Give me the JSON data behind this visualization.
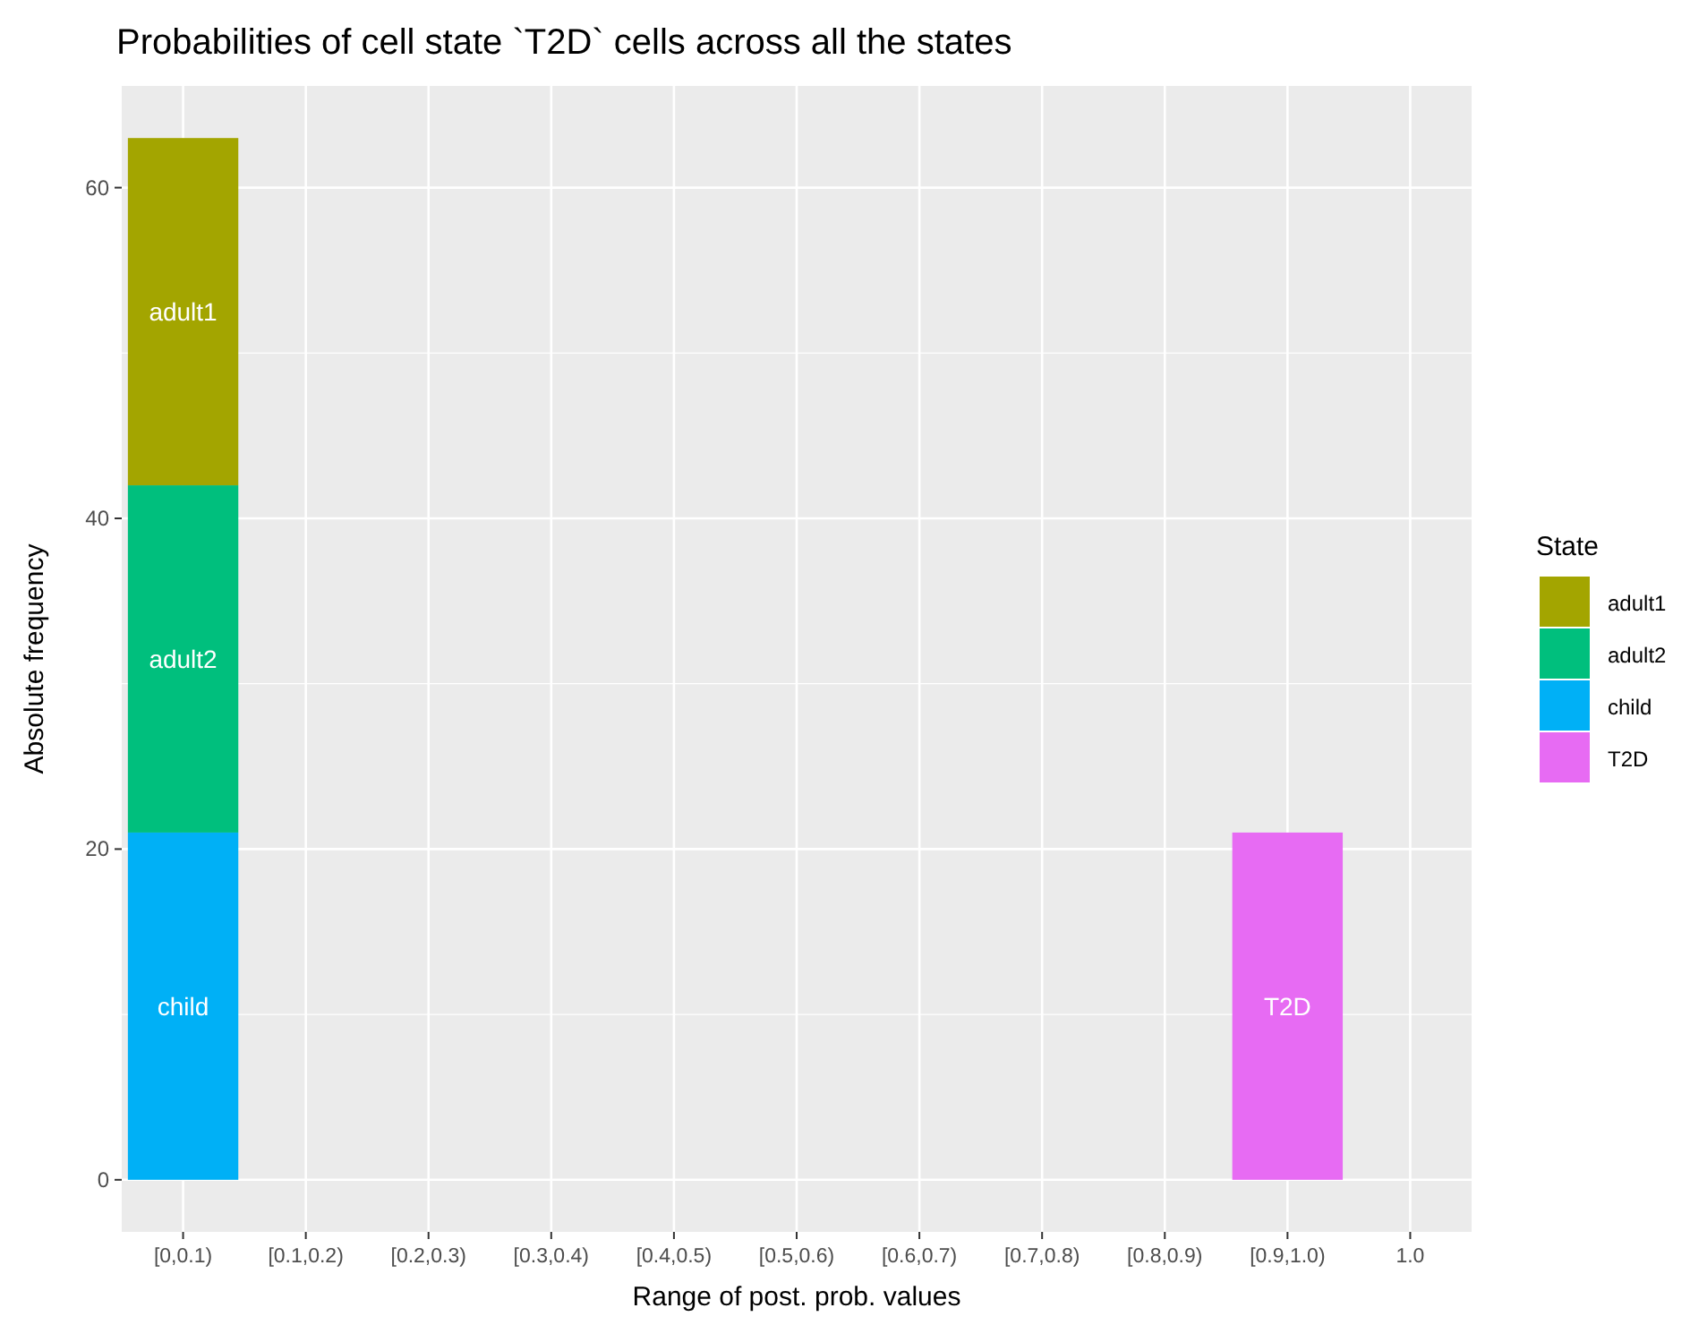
{
  "chart_data": {
    "type": "bar",
    "title": "Probabilities of cell state `T2D` cells across all the states",
    "xlabel": "Range of post. prob. values",
    "ylabel": "Absolute frequency",
    "legend_title": "State",
    "categories": [
      "[0,0.1)",
      "[0.1,0.2)",
      "[0.2,0.3)",
      "[0.3,0.4)",
      "[0.4,0.5)",
      "[0.5,0.6)",
      "[0.6,0.7)",
      "[0.7,0.8)",
      "[0.8,0.9)",
      "[0.9,1.0)",
      "1.0"
    ],
    "series": [
      {
        "name": "T2D",
        "color": "#e76bf3",
        "values": [
          0,
          0,
          0,
          0,
          0,
          0,
          0,
          0,
          0,
          21,
          0
        ]
      },
      {
        "name": "child",
        "color": "#00b0f6",
        "values": [
          21,
          0,
          0,
          0,
          0,
          0,
          0,
          0,
          0,
          0,
          0
        ]
      },
      {
        "name": "adult2",
        "color": "#00bf7d",
        "values": [
          21,
          0,
          0,
          0,
          0,
          0,
          0,
          0,
          0,
          0,
          0
        ]
      },
      {
        "name": "adult1",
        "color": "#a3a500",
        "values": [
          21,
          0,
          0,
          0,
          0,
          0,
          0,
          0,
          0,
          0,
          0
        ]
      }
    ],
    "stacked": true,
    "ylim": [
      -3.15,
      66.15
    ],
    "yticks": [
      0,
      20,
      40,
      60
    ],
    "grid": true,
    "legend": "right"
  }
}
